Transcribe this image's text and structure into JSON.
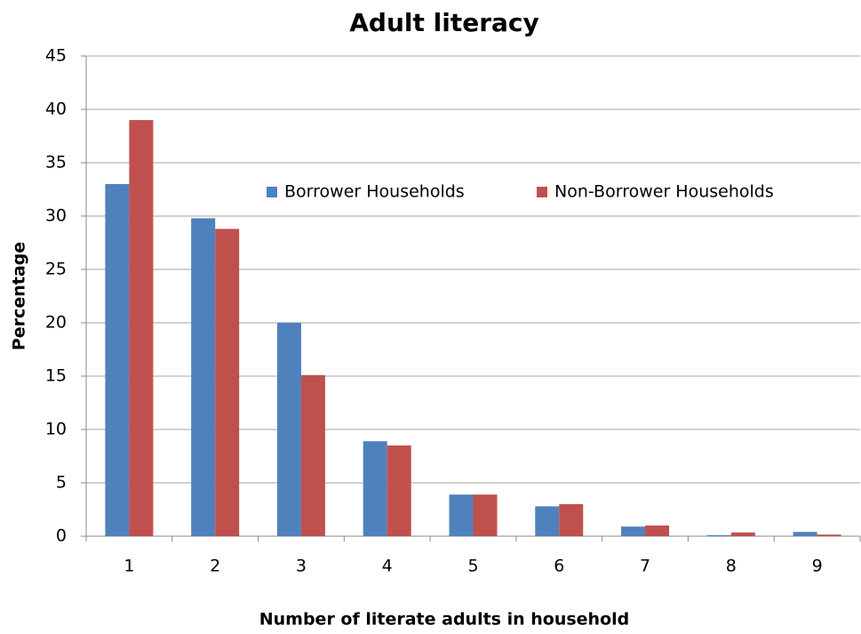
{
  "chart_data": {
    "type": "bar",
    "title": "Adult literacy",
    "x_label": "Number of literate adults in household",
    "y_label": "Percentage",
    "categories": [
      1,
      2,
      3,
      4,
      5,
      6,
      7,
      8,
      9
    ],
    "series": [
      {
        "name": "Borrower Households",
        "color": "#4f81bd",
        "values": [
          33,
          29.8,
          20,
          8.9,
          3.9,
          2.8,
          0.9,
          0.1,
          0.4
        ]
      },
      {
        "name": "Non-Borrower Households",
        "color": "#c0504d",
        "values": [
          39,
          28.8,
          15.1,
          8.5,
          3.9,
          3.0,
          1.0,
          0.35,
          0.15
        ]
      }
    ],
    "ylim": [
      0,
      45
    ],
    "yticks": [
      0,
      5,
      10,
      15,
      20,
      25,
      30,
      35,
      40,
      45
    ],
    "grid": true,
    "legend": "top-right"
  }
}
